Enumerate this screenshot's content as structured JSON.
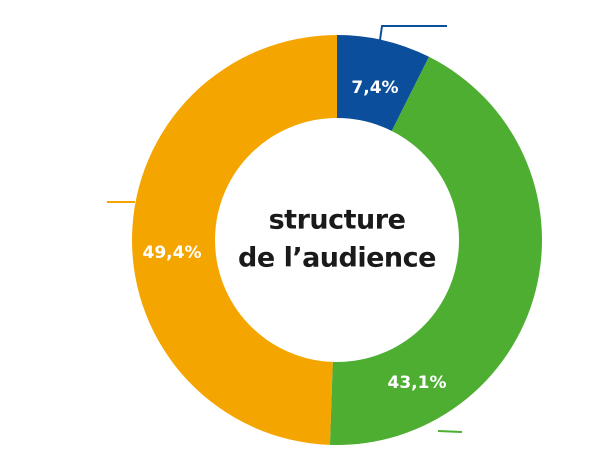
{
  "chart_data": {
    "type": "donut",
    "center_label": [
      "structure",
      "de l’audience"
    ],
    "categories": [
      null,
      null,
      null
    ],
    "values": [
      7.4,
      43.1,
      49.4
    ],
    "value_labels": [
      "7,4%",
      "43,1%",
      "49,4%"
    ],
    "colors": [
      "#0b4f9c",
      "#4dae32",
      "#f5a500"
    ]
  }
}
